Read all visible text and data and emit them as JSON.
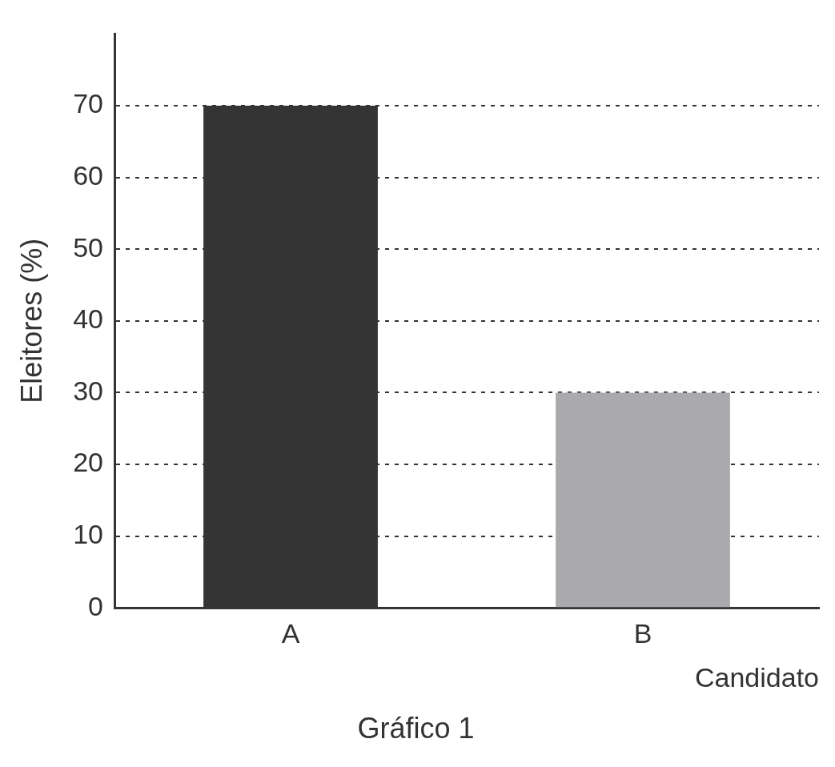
{
  "chart_data": {
    "type": "bar",
    "title": "Gráfico 1",
    "xlabel": "Candidato",
    "ylabel": "Eleitores (%)",
    "categories": [
      "A",
      "B"
    ],
    "values": [
      70,
      30
    ],
    "colors": [
      "#353435",
      "#aaaaad"
    ],
    "ylim": [
      0,
      80
    ],
    "yticks": [
      0,
      10,
      20,
      30,
      40,
      50,
      60,
      70
    ],
    "grid": "y",
    "legend": false
  }
}
